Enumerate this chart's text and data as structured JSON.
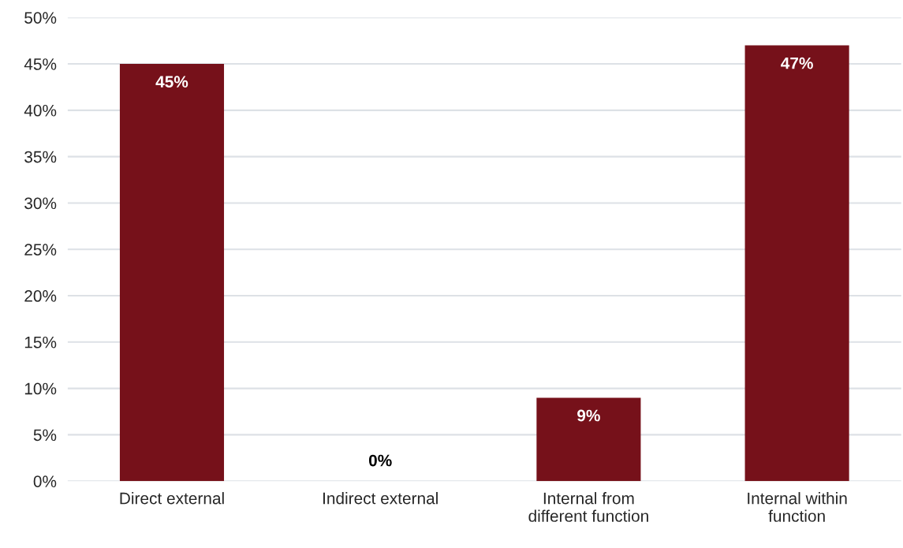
{
  "chart_data": {
    "type": "bar",
    "categories": [
      "Direct external",
      "Indirect external",
      "Internal from\ndifferent function",
      "Internal within\nfunction"
    ],
    "values": [
      45,
      0,
      9,
      47
    ],
    "value_labels": [
      "45%",
      "0%",
      "9%",
      "47%"
    ],
    "color": "#76111a",
    "ylim": [
      0,
      50
    ],
    "yticks": [
      {
        "value": 0,
        "label": "0%"
      },
      {
        "value": 5,
        "label": "5%"
      },
      {
        "value": 10,
        "label": "10%"
      },
      {
        "value": 15,
        "label": "15%"
      },
      {
        "value": 20,
        "label": "20%"
      },
      {
        "value": 25,
        "label": "25%"
      },
      {
        "value": 30,
        "label": "30%"
      },
      {
        "value": 35,
        "label": "35%"
      },
      {
        "value": 40,
        "label": "40%"
      },
      {
        "value": 45,
        "label": "45%"
      },
      {
        "value": 50,
        "label": "50%"
      }
    ],
    "grid": "y"
  }
}
